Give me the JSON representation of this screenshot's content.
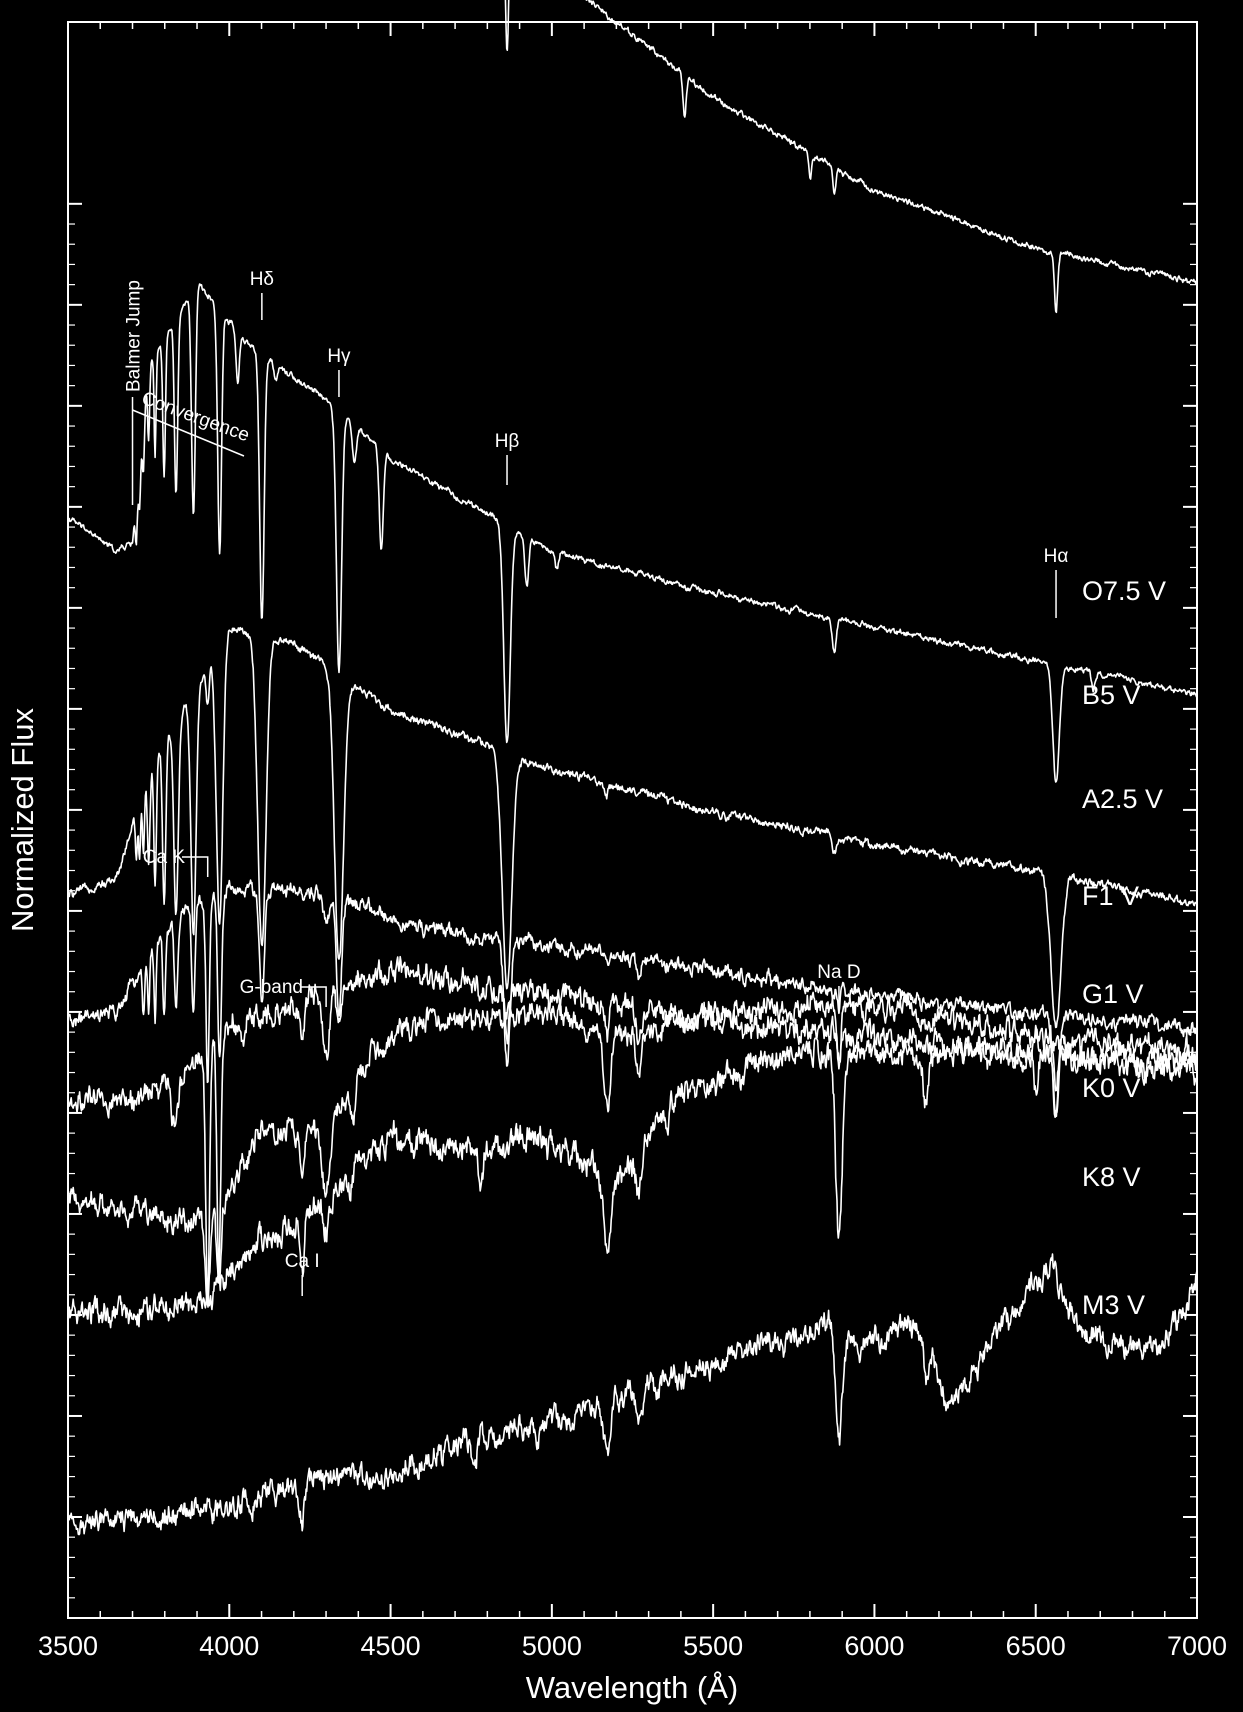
{
  "chart_data": {
    "type": "line",
    "xlabel": "Wavelength (Å)",
    "ylabel": "Normalized Flux",
    "xlim": [
      3500,
      7000
    ],
    "xticks": [
      "3500",
      "4000",
      "4500",
      "5000",
      "5500",
      "6000",
      "6500",
      "7000"
    ],
    "ytick_count": 14,
    "y_tick_labels_shown": false,
    "grid": false,
    "background": "#000000",
    "line_color": "#ffffff",
    "series": [
      {
        "name": "O7.5 V",
        "baseline": 12.0,
        "continuum": [
          [
            3500,
            18.3
          ],
          [
            3600,
            16.7
          ],
          [
            3750,
            15.1
          ],
          [
            3900,
            13.4
          ],
          [
            4100,
            11.7
          ],
          [
            4500,
            9.6
          ],
          [
            5000,
            7.6
          ],
          [
            5500,
            6.1
          ],
          [
            6000,
            5.0
          ],
          [
            6500,
            4.3
          ],
          [
            7000,
            3.9
          ]
        ],
        "lines": [
          [
            3700,
            0.2,
            4
          ],
          [
            3750,
            1.0,
            3
          ],
          [
            3770,
            1.1,
            3
          ],
          [
            3798,
            1.3,
            3
          ],
          [
            3835,
            1.5,
            4
          ],
          [
            3889,
            2.3,
            5
          ],
          [
            3970,
            2.1,
            5
          ],
          [
            4026,
            0.7,
            5
          ],
          [
            4101,
            2.4,
            5
          ],
          [
            4200,
            0.5,
            4
          ],
          [
            4340,
            2.3,
            5
          ],
          [
            4388,
            0.5,
            4
          ],
          [
            4471,
            1.0,
            5
          ],
          [
            4541,
            0.5,
            4
          ],
          [
            4686,
            0.8,
            5
          ],
          [
            4861,
            1.5,
            5
          ],
          [
            4922,
            0.3,
            4
          ],
          [
            5411,
            0.5,
            5
          ],
          [
            5801,
            0.3,
            4
          ],
          [
            5876,
            0.3,
            5
          ],
          [
            6563,
            0.7,
            5
          ]
        ],
        "noise": 0.05,
        "balmer_jump": 0
      },
      {
        "name": "B5 V",
        "baseline": 9.5,
        "continuum": [
          [
            3500,
            3.6
          ],
          [
            3650,
            3.2
          ],
          [
            3700,
            3.3
          ],
          [
            3750,
            5.4
          ],
          [
            3900,
            6.4
          ],
          [
            4050,
            5.7
          ],
          [
            4300,
            5.0
          ],
          [
            4500,
            4.3
          ],
          [
            5000,
            3.2
          ],
          [
            5500,
            2.7
          ],
          [
            6000,
            2.3
          ],
          [
            6500,
            1.9
          ],
          [
            7000,
            1.5
          ]
        ],
        "lines": [
          [
            3712,
            0.5,
            3
          ],
          [
            3722,
            0.5,
            3
          ],
          [
            3734,
            0.6,
            3
          ],
          [
            3750,
            0.9,
            3
          ],
          [
            3770,
            1.2,
            3
          ],
          [
            3798,
            1.6,
            4
          ],
          [
            3835,
            2.1,
            5
          ],
          [
            3889,
            2.7,
            6
          ],
          [
            3970,
            2.9,
            6
          ],
          [
            4026,
            0.6,
            5
          ],
          [
            4101,
            3.2,
            7
          ],
          [
            4144,
            0.2,
            5
          ],
          [
            4340,
            3.1,
            8
          ],
          [
            4388,
            0.4,
            6
          ],
          [
            4471,
            1.2,
            6
          ],
          [
            4861,
            2.6,
            10
          ],
          [
            4922,
            0.6,
            6
          ],
          [
            5015,
            0.2,
            5
          ],
          [
            5876,
            0.4,
            6
          ],
          [
            6563,
            1.4,
            10
          ],
          [
            6678,
            0.2,
            5
          ]
        ],
        "noise": 0.05,
        "balmer_jump": 0
      },
      {
        "name": "A2.5 V",
        "baseline": 7.8,
        "continuum": [
          [
            3500,
            0.8
          ],
          [
            3650,
            1.0
          ],
          [
            3750,
            2.3
          ],
          [
            3900,
            3.3
          ],
          [
            4000,
            4.0
          ],
          [
            4200,
            3.8
          ],
          [
            4500,
            3.0
          ],
          [
            4800,
            2.6
          ],
          [
            5000,
            2.3
          ],
          [
            5500,
            1.8
          ],
          [
            6000,
            1.4
          ],
          [
            6500,
            1.1
          ],
          [
            7000,
            0.7
          ]
        ],
        "lines": [
          [
            3712,
            0.6,
            3
          ],
          [
            3722,
            0.7,
            3
          ],
          [
            3734,
            0.8,
            3
          ],
          [
            3750,
            1.1,
            4
          ],
          [
            3770,
            1.5,
            4
          ],
          [
            3798,
            1.9,
            5
          ],
          [
            3835,
            2.3,
            7
          ],
          [
            3889,
            2.9,
            8
          ],
          [
            3933,
            0.5,
            5
          ],
          [
            3970,
            3.3,
            10
          ],
          [
            4101,
            3.7,
            13
          ],
          [
            4340,
            3.4,
            14
          ],
          [
            4861,
            2.8,
            15
          ],
          [
            5169,
            0.15,
            5
          ],
          [
            5876,
            0.2,
            6
          ],
          [
            6563,
            1.8,
            16
          ]
        ],
        "noise": 0.07,
        "balmer_jump": 0
      },
      {
        "name": "F1 V",
        "baseline": 6.7,
        "continuum": [
          [
            3500,
            0.4
          ],
          [
            3650,
            0.5
          ],
          [
            3750,
            1.2
          ],
          [
            3850,
            1.7
          ],
          [
            4000,
            2.0
          ],
          [
            4300,
            1.9
          ],
          [
            4600,
            1.5
          ],
          [
            5000,
            1.3
          ],
          [
            5500,
            1.0
          ],
          [
            6000,
            0.7
          ],
          [
            6500,
            0.5
          ],
          [
            7000,
            0.3
          ]
        ],
        "lines": [
          [
            3734,
            0.6,
            3
          ],
          [
            3750,
            0.8,
            3
          ],
          [
            3770,
            0.9,
            3
          ],
          [
            3798,
            1.0,
            4
          ],
          [
            3835,
            1.1,
            5
          ],
          [
            3889,
            1.3,
            5
          ],
          [
            3933,
            2.2,
            5
          ],
          [
            3970,
            2.0,
            6
          ],
          [
            4101,
            1.4,
            7
          ],
          [
            4300,
            0.3,
            8
          ],
          [
            4340,
            1.4,
            8
          ],
          [
            4861,
            1.5,
            9
          ],
          [
            5172,
            0.2,
            6
          ],
          [
            5269,
            0.15,
            6
          ],
          [
            5890,
            0.2,
            4
          ],
          [
            6563,
            1.2,
            10
          ]
        ],
        "noise": 0.12,
        "balmer_jump": 0
      },
      {
        "name": "G1 V",
        "baseline": 5.5,
        "continuum": [
          [
            3500,
            0.6
          ],
          [
            3700,
            0.7
          ],
          [
            3850,
            1.0
          ],
          [
            4000,
            1.6
          ],
          [
            4200,
            1.8
          ],
          [
            4350,
            2.1
          ],
          [
            4500,
            2.2
          ],
          [
            5000,
            1.9
          ],
          [
            5500,
            1.6
          ],
          [
            6000,
            1.4
          ],
          [
            6500,
            1.2
          ],
          [
            7000,
            1.0
          ]
        ],
        "lines": [
          [
            3933,
            3.0,
            6
          ],
          [
            3968,
            2.8,
            6
          ],
          [
            3830,
            0.6,
            10
          ],
          [
            4045,
            0.4,
            6
          ],
          [
            4226,
            0.5,
            6
          ],
          [
            4300,
            0.8,
            12
          ],
          [
            4340,
            0.5,
            8
          ],
          [
            4383,
            0.3,
            6
          ],
          [
            4861,
            0.7,
            6
          ],
          [
            5172,
            0.4,
            6
          ],
          [
            5269,
            0.3,
            6
          ],
          [
            5890,
            0.4,
            5
          ],
          [
            6563,
            0.8,
            6
          ]
        ],
        "noise": 0.2,
        "balmer_jump": 0
      },
      {
        "name": "K0 V",
        "baseline": 4.4,
        "continuum": [
          [
            3500,
            0.6
          ],
          [
            3700,
            0.5
          ],
          [
            3850,
            0.3
          ],
          [
            4000,
            0.7
          ],
          [
            4100,
            1.4
          ],
          [
            4200,
            1.4
          ],
          [
            4300,
            1.4
          ],
          [
            4450,
            2.3
          ],
          [
            4600,
            2.7
          ],
          [
            5000,
            2.8
          ],
          [
            5200,
            2.5
          ],
          [
            5500,
            2.8
          ],
          [
            6000,
            2.9
          ],
          [
            6500,
            2.5
          ],
          [
            7000,
            2.3
          ]
        ],
        "lines": [
          [
            3933,
            1.2,
            8
          ],
          [
            3968,
            1.0,
            8
          ],
          [
            4226,
            0.6,
            6
          ],
          [
            4300,
            0.8,
            12
          ],
          [
            4383,
            0.4,
            6
          ],
          [
            5172,
            0.9,
            10
          ],
          [
            5269,
            0.4,
            8
          ],
          [
            5890,
            0.8,
            6
          ],
          [
            6563,
            0.5,
            6
          ]
        ],
        "noise": 0.2,
        "balmer_jump": 0
      },
      {
        "name": "K8 V",
        "baseline": 3.4,
        "continuum": [
          [
            3500,
            0.2
          ],
          [
            3900,
            0.3
          ],
          [
            4050,
            0.9
          ],
          [
            4300,
            1.6
          ],
          [
            4500,
            2.3
          ],
          [
            4700,
            2.2
          ],
          [
            5000,
            2.3
          ],
          [
            5200,
            1.8
          ],
          [
            5400,
            2.8
          ],
          [
            5700,
            3.3
          ],
          [
            6000,
            3.3
          ],
          [
            6300,
            3.3
          ],
          [
            6600,
            3.3
          ],
          [
            7000,
            3.2
          ]
        ],
        "lines": [
          [
            4226,
            0.8,
            6
          ],
          [
            4300,
            0.5,
            10
          ],
          [
            4780,
            0.4,
            8
          ],
          [
            5172,
            0.9,
            12
          ],
          [
            5269,
            0.5,
            10
          ],
          [
            5890,
            2.1,
            10
          ],
          [
            6160,
            0.6,
            8
          ],
          [
            6500,
            0.4,
            6
          ]
        ],
        "noise": 0.22,
        "balmer_jump": 0
      },
      {
        "name": "M3 V",
        "baseline": 1.0,
        "continuum": [
          [
            3500,
            0.1
          ],
          [
            4000,
            0.3
          ],
          [
            4200,
            0.6
          ],
          [
            4600,
            0.8
          ],
          [
            4750,
            1.1
          ],
          [
            4950,
            1.3
          ],
          [
            5200,
            1.6
          ],
          [
            5500,
            2.0
          ],
          [
            5800,
            2.4
          ],
          [
            5850,
            2.6
          ],
          [
            5950,
            2.2
          ],
          [
            6100,
            2.4
          ],
          [
            6150,
            2.5
          ],
          [
            6230,
            1.5
          ],
          [
            6400,
            2.5
          ],
          [
            6550,
            3.2
          ],
          [
            6650,
            2.3
          ],
          [
            6800,
            2.3
          ],
          [
            6900,
            2.2
          ],
          [
            7000,
            3.1
          ]
        ],
        "lines": [
          [
            4226,
            0.5,
            6
          ],
          [
            4760,
            0.3,
            8
          ],
          [
            4955,
            0.4,
            6
          ],
          [
            5172,
            0.6,
            10
          ],
          [
            5269,
            0.4,
            8
          ],
          [
            5890,
            1.3,
            10
          ],
          [
            6160,
            0.5,
            8
          ]
        ],
        "noise": 0.2,
        "balmer_jump": 0
      }
    ],
    "series_labels": [
      "O7.5 V",
      "B5 V",
      "A2.5 V",
      "F1 V",
      "G1 V",
      "K0 V",
      "K8 V",
      "M3 V"
    ],
    "annotations": [
      {
        "text": "Hδ",
        "x": 4101
      },
      {
        "text": "Hγ",
        "x": 4340
      },
      {
        "text": "Hβ",
        "x": 4861
      },
      {
        "text": "Hα",
        "x": 6563
      },
      {
        "text": "Balmer Jump",
        "x": 3700
      },
      {
        "text": "Convergence",
        "x": 3700
      },
      {
        "text": "Ca K",
        "x": 3933
      },
      {
        "text": "G-band",
        "x": 4300
      },
      {
        "text": "Na D",
        "x": 5890
      },
      {
        "text": "Ca I",
        "x": 4226
      }
    ]
  }
}
